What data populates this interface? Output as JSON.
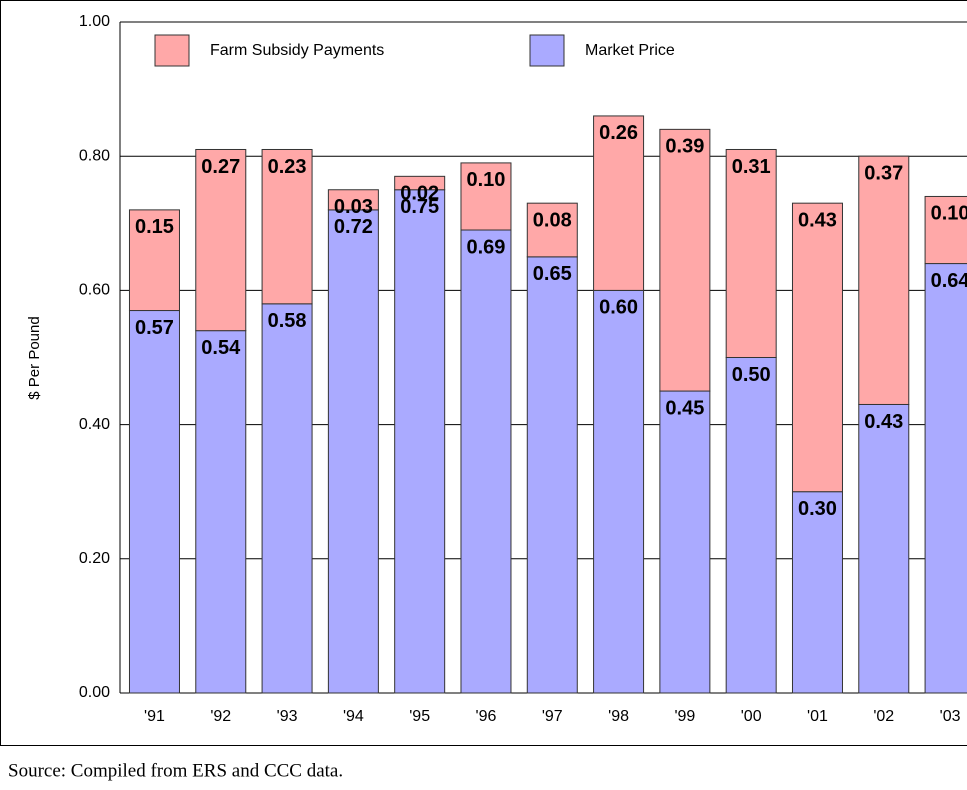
{
  "chart_data": {
    "type": "stacked_bar",
    "ylabel": "$ Per Pound",
    "source": "Source:  Compiled from ERS and CCC data.",
    "categories": [
      "'91",
      "'92",
      "'93",
      "'94",
      "'95",
      "'96",
      "'97",
      "'98",
      "'99",
      "'00",
      "'01",
      "'02",
      "'03"
    ],
    "series": [
      {
        "name": "Market Price",
        "color": "#aaaaff",
        "values": [
          0.57,
          0.54,
          0.58,
          0.72,
          0.75,
          0.69,
          0.65,
          0.6,
          0.45,
          0.5,
          0.3,
          0.43,
          0.64
        ],
        "value_labels": [
          "0.57",
          "0.54",
          "0.58",
          "0.72",
          "0.75",
          "0.69",
          "0.65",
          "0.60",
          "0.45",
          "0.50",
          "0.30",
          "0.43",
          "0.64"
        ]
      },
      {
        "name": "Farm Subsidy Payments",
        "color": "#ffa8a8",
        "values": [
          0.15,
          0.27,
          0.23,
          0.03,
          0.02,
          0.1,
          0.08,
          0.26,
          0.39,
          0.31,
          0.43,
          0.37,
          0.1
        ],
        "value_labels": [
          "0.15",
          "0.27",
          "0.23",
          "0.03",
          "0.02",
          "0.10",
          "0.08",
          "0.26",
          "0.39",
          "0.31",
          "0.43",
          "0.37",
          "0.10"
        ]
      }
    ],
    "ylim": [
      0,
      1
    ],
    "yticks": [
      {
        "value": 0,
        "label": "0.00"
      },
      {
        "value": 0.2,
        "label": "0.20"
      },
      {
        "value": 0.4,
        "label": "0.40"
      },
      {
        "value": 0.6,
        "label": "0.60"
      },
      {
        "value": 0.8,
        "label": "0.80"
      },
      {
        "value": 1,
        "label": "1.00"
      }
    ],
    "grid": true,
    "legend": "top-left"
  }
}
